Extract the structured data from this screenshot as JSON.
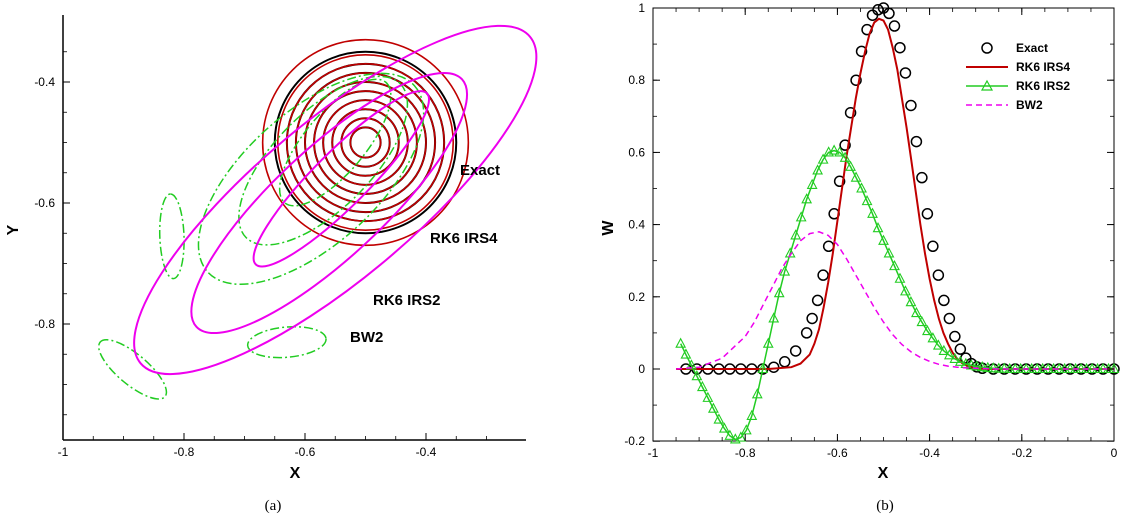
{
  "panel_a": {
    "caption": "(a)",
    "xlabel": "X",
    "ylabel": "Y",
    "xticks": [
      -1,
      -0.8,
      -0.6,
      -0.4
    ],
    "xtick_labels": [
      "-1",
      "-0.8",
      "-0.6",
      "-0.4"
    ],
    "yticks": [
      -0.8,
      -0.6,
      -0.4
    ],
    "ytick_labels": [
      "-0.8",
      "-0.6",
      "-0.4"
    ],
    "labels": {
      "exact": "Exact",
      "rk6irs4": "RK6 IRS4",
      "rk6irs2": "RK6 IRS2",
      "bw2": "BW2"
    }
  },
  "panel_b": {
    "caption": "(b)",
    "xlabel": "X",
    "ylabel": "W",
    "xtick_labels": [
      "-1",
      "-0.8",
      "-0.6",
      "-0.4",
      "-0.2",
      "0"
    ],
    "ytick_labels": [
      "-0.2",
      "0",
      "0.2",
      "0.4",
      "0.6",
      "0.8",
      "1"
    ]
  },
  "colors": {
    "exact": "#000000",
    "rk6irs4": "#c00000",
    "rk6irs2": "#22cc22",
    "bw2": "#ee00ee"
  },
  "chart_data": [
    {
      "type": "contour",
      "xlabel": "X",
      "ylabel": "Y",
      "xlim": [
        -1,
        -0.2
      ],
      "ylim": [
        -0.98,
        -0.31
      ],
      "contour_sets": [
        {
          "name": "Exact",
          "center": [
            -0.5,
            -0.5
          ],
          "radii": [
            0.025,
            0.04,
            0.055,
            0.07,
            0.085,
            0.1,
            0.115,
            0.13,
            0.15
          ],
          "style": "solid"
        },
        {
          "name": "RK6 IRS4",
          "center": [
            -0.5,
            -0.5
          ],
          "radii": [
            0.025,
            0.04,
            0.055,
            0.07,
            0.085,
            0.1,
            0.115,
            0.13,
            0.145,
            0.17
          ],
          "style": "solid"
        },
        {
          "name": "RK6 IRS2",
          "style": "dash-dot",
          "ellipses": [
            {
              "center": [
                -0.55,
                -0.5
              ],
              "semi_axes": [
                0.13,
                0.05
              ],
              "angle_deg": 50
            },
            {
              "center": [
                -0.57,
                -0.53
              ],
              "semi_axes": [
                0.18,
                0.08
              ],
              "angle_deg": 45
            },
            {
              "center": [
                -0.59,
                -0.56
              ],
              "semi_axes": [
                0.23,
                0.11
              ],
              "angle_deg": 42
            },
            {
              "center": [
                -0.82,
                -0.655
              ],
              "semi_axes": [
                0.07,
                0.02
              ],
              "angle_deg": 92
            },
            {
              "center": [
                -0.885,
                -0.875
              ],
              "semi_axes": [
                0.07,
                0.025
              ],
              "angle_deg": 140
            },
            {
              "center": [
                -0.63,
                -0.83
              ],
              "semi_axes": [
                0.065,
                0.025
              ],
              "angle_deg": 5
            }
          ]
        },
        {
          "name": "BW2",
          "style": "solid",
          "ellipses": [
            {
              "center": [
                -0.54,
                -0.56
              ],
              "semi_axes": [
                0.2,
                0.045
              ],
              "angle_deg": 45
            },
            {
              "center": [
                -0.56,
                -0.6
              ],
              "semi_axes": [
                0.3,
                0.09
              ],
              "angle_deg": 43
            },
            {
              "center": [
                -0.55,
                -0.595
              ],
              "semi_axes": [
                0.42,
                0.13
              ],
              "angle_deg": 40
            }
          ]
        }
      ]
    },
    {
      "type": "line",
      "xlabel": "X",
      "ylabel": "W",
      "xlim": [
        -1,
        0
      ],
      "ylim": [
        -0.2,
        1
      ],
      "legend": "top-right",
      "series": [
        {
          "name": "Exact",
          "style": "circle-markers",
          "x": [
            -0.9286,
            -0.9048,
            -0.881,
            -0.8571,
            -0.8333,
            -0.8095,
            -0.7857,
            -0.7619,
            -0.7381,
            -0.7143,
            -0.6905,
            -0.6667,
            -0.6548,
            -0.6429,
            -0.631,
            -0.619,
            -0.6071,
            -0.5952,
            -0.5833,
            -0.5714,
            -0.5595,
            -0.5476,
            -0.5357,
            -0.5238,
            -0.5119,
            -0.5,
            -0.4881,
            -0.4762,
            -0.4643,
            -0.4524,
            -0.4405,
            -0.4286,
            -0.4167,
            -0.4048,
            -0.3929,
            -0.381,
            -0.369,
            -0.3571,
            -0.3452,
            -0.3333,
            -0.3214,
            -0.3095,
            -0.2976,
            -0.2857,
            -0.2619,
            -0.2381,
            -0.2143,
            -0.1905,
            -0.1667,
            -0.1429,
            -0.119,
            -0.0952,
            -0.0714,
            -0.0476,
            -0.0238,
            0
          ],
          "y": [
            0,
            0,
            0,
            0,
            0,
            0,
            0,
            0,
            0.005,
            0.02,
            0.05,
            0.1,
            0.14,
            0.19,
            0.26,
            0.34,
            0.43,
            0.52,
            0.62,
            0.71,
            0.8,
            0.88,
            0.94,
            0.98,
            0.995,
            1,
            0.985,
            0.95,
            0.89,
            0.82,
            0.73,
            0.63,
            0.53,
            0.43,
            0.34,
            0.26,
            0.19,
            0.14,
            0.09,
            0.055,
            0.03,
            0.015,
            0.006,
            0.002,
            0,
            0,
            0,
            0,
            0,
            0,
            0,
            0,
            0,
            0,
            0,
            0
          ]
        },
        {
          "name": "RK6 IRS4",
          "style": "solid-line",
          "x": [
            -0.95,
            -0.9,
            -0.85,
            -0.8,
            -0.75,
            -0.7,
            -0.68,
            -0.66,
            -0.65,
            -0.64,
            -0.63,
            -0.62,
            -0.61,
            -0.6,
            -0.59,
            -0.58,
            -0.57,
            -0.56,
            -0.55,
            -0.54,
            -0.53,
            -0.52,
            -0.51,
            -0.5,
            -0.49,
            -0.48,
            -0.47,
            -0.46,
            -0.45,
            -0.44,
            -0.43,
            -0.42,
            -0.41,
            -0.4,
            -0.39,
            -0.38,
            -0.37,
            -0.36,
            -0.35,
            -0.34,
            -0.33,
            -0.32,
            -0.31,
            -0.3,
            -0.29,
            -0.28,
            -0.27,
            -0.25,
            -0.2,
            -0.15,
            -0.1,
            -0.05,
            0
          ],
          "y": [
            0,
            0,
            0,
            0,
            0,
            0.005,
            0.015,
            0.04,
            0.07,
            0.11,
            0.17,
            0.24,
            0.32,
            0.41,
            0.5,
            0.59,
            0.67,
            0.75,
            0.82,
            0.88,
            0.93,
            0.96,
            0.97,
            0.965,
            0.94,
            0.89,
            0.83,
            0.75,
            0.67,
            0.58,
            0.49,
            0.4,
            0.32,
            0.25,
            0.19,
            0.14,
            0.1,
            0.07,
            0.045,
            0.028,
            0.017,
            0.01,
            0.005,
            0.002,
            0.001,
            0,
            0,
            0,
            0,
            0,
            0,
            0,
            0
          ]
        },
        {
          "name": "RK6 IRS2",
          "style": "line-triangle-markers",
          "x": [
            -0.94,
            -0.9286,
            -0.9167,
            -0.9048,
            -0.8929,
            -0.881,
            -0.869,
            -0.8571,
            -0.8452,
            -0.8333,
            -0.8214,
            -0.8095,
            -0.7976,
            -0.7857,
            -0.7738,
            -0.7619,
            -0.75,
            -0.7381,
            -0.7262,
            -0.7143,
            -0.7024,
            -0.6905,
            -0.6786,
            -0.6667,
            -0.6548,
            -0.6429,
            -0.631,
            -0.619,
            -0.6071,
            -0.5952,
            -0.5833,
            -0.5714,
            -0.5595,
            -0.5476,
            -0.5357,
            -0.5238,
            -0.5119,
            -0.5,
            -0.4881,
            -0.4762,
            -0.4643,
            -0.4524,
            -0.4405,
            -0.4286,
            -0.4167,
            -0.4048,
            -0.3929,
            -0.381,
            -0.369,
            -0.3571,
            -0.3452,
            -0.3333,
            -0.3214,
            -0.3095,
            -0.2976,
            -0.2857,
            -0.2738,
            -0.2619,
            -0.25,
            -0.2381,
            -0.2262,
            -0.2143,
            -0.2024,
            -0.1905,
            -0.1786,
            -0.1667,
            -0.1548,
            -0.1429,
            -0.131,
            -0.119,
            -0.1071,
            -0.0952,
            -0.0833,
            -0.0714,
            -0.0595,
            -0.0476,
            -0.0357,
            -0.0238,
            -0.0119,
            0
          ],
          "y": [
            0.07,
            0.04,
            0.01,
            -0.02,
            -0.05,
            -0.08,
            -0.11,
            -0.14,
            -0.165,
            -0.185,
            -0.195,
            -0.19,
            -0.17,
            -0.13,
            -0.07,
            0.0,
            0.07,
            0.14,
            0.21,
            0.27,
            0.32,
            0.37,
            0.42,
            0.47,
            0.51,
            0.55,
            0.58,
            0.6,
            0.605,
            0.6,
            0.585,
            0.56,
            0.53,
            0.5,
            0.465,
            0.43,
            0.39,
            0.355,
            0.32,
            0.285,
            0.25,
            0.215,
            0.185,
            0.155,
            0.13,
            0.105,
            0.085,
            0.065,
            0.05,
            0.038,
            0.028,
            0.02,
            0.014,
            0.01,
            0.007,
            0.005,
            0.003,
            0.002,
            0.001,
            0.001,
            0,
            0,
            0,
            0,
            0,
            0,
            0,
            0,
            0,
            0,
            0,
            0,
            0,
            0,
            0,
            0,
            0,
            0,
            0,
            0
          ]
        },
        {
          "name": "BW2",
          "style": "dashed-line",
          "x": [
            -0.95,
            -0.9,
            -0.85,
            -0.8,
            -0.78,
            -0.76,
            -0.74,
            -0.72,
            -0.7,
            -0.68,
            -0.66,
            -0.64,
            -0.62,
            -0.6,
            -0.58,
            -0.56,
            -0.54,
            -0.52,
            -0.5,
            -0.48,
            -0.46,
            -0.44,
            -0.42,
            -0.4,
            -0.38,
            -0.36,
            -0.34,
            -0.32,
            -0.3,
            -0.25,
            -0.2,
            -0.15,
            -0.1,
            -0.05,
            0
          ],
          "y": [
            0,
            0.005,
            0.03,
            0.09,
            0.13,
            0.18,
            0.23,
            0.28,
            0.32,
            0.355,
            0.375,
            0.38,
            0.37,
            0.345,
            0.305,
            0.26,
            0.215,
            0.17,
            0.13,
            0.095,
            0.068,
            0.047,
            0.032,
            0.021,
            0.013,
            0.008,
            0.005,
            0.003,
            0.002,
            0,
            0,
            0,
            0,
            0,
            0
          ]
        }
      ]
    }
  ]
}
